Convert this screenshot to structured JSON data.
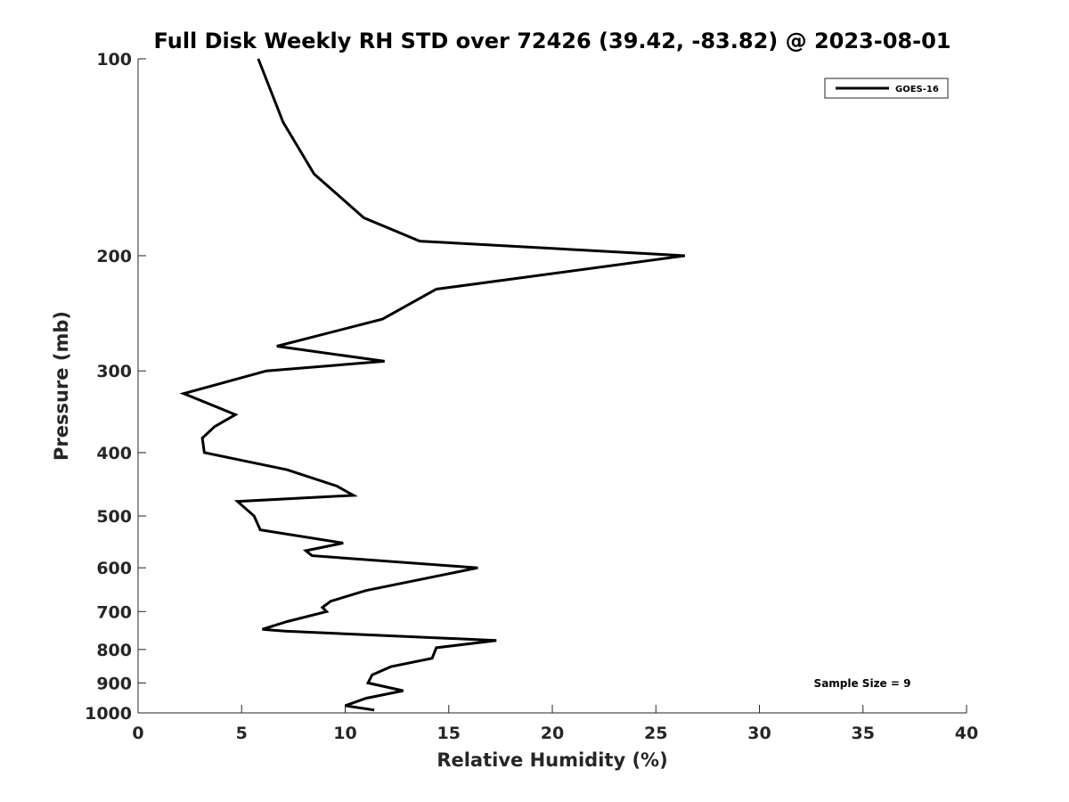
{
  "chart_data": {
    "type": "line",
    "title": "Full Disk Weekly RH STD over 72426 (39.42, -83.82) @ 2023-08-01",
    "xlabel": "Relative Humidity (%)",
    "ylabel": "Pressure (mb)",
    "xlim": [
      0,
      40
    ],
    "ylim": [
      100,
      1000
    ],
    "y_scale": "log",
    "y_reversed": true,
    "x_ticks": [
      "0",
      "5",
      "10",
      "15",
      "20",
      "25",
      "30",
      "35",
      "40"
    ],
    "y_ticks": [
      "100",
      "200",
      "300",
      "400",
      "500",
      "600",
      "700",
      "800",
      "900",
      "1000"
    ],
    "grid": false,
    "legend_position": "top-right",
    "annotation": "Sample Size = 9",
    "series": [
      {
        "name": "GOES-16",
        "color": "#000000",
        "points": [
          [
            5.8,
            100
          ],
          [
            7.0,
            125
          ],
          [
            8.5,
            150
          ],
          [
            10.9,
            175
          ],
          [
            13.6,
            190
          ],
          [
            26.4,
            200
          ],
          [
            14.4,
            225
          ],
          [
            11.8,
            250
          ],
          [
            6.7,
            275
          ],
          [
            11.9,
            290
          ],
          [
            6.2,
            300
          ],
          [
            2.2,
            325
          ],
          [
            4.7,
            350
          ],
          [
            3.7,
            365
          ],
          [
            3.1,
            380
          ],
          [
            3.2,
            400
          ],
          [
            7.2,
            425
          ],
          [
            9.6,
            450
          ],
          [
            10.4,
            465
          ],
          [
            4.8,
            475
          ],
          [
            5.6,
            500
          ],
          [
            5.9,
            525
          ],
          [
            9.9,
            550
          ],
          [
            8.1,
            565
          ],
          [
            8.4,
            575
          ],
          [
            16.4,
            600
          ],
          [
            11.0,
            650
          ],
          [
            9.3,
            675
          ],
          [
            8.9,
            690
          ],
          [
            9.1,
            700
          ],
          [
            7.2,
            725
          ],
          [
            6.0,
            745
          ],
          [
            7.1,
            750
          ],
          [
            17.3,
            775
          ],
          [
            14.4,
            795
          ],
          [
            14.2,
            825
          ],
          [
            12.2,
            850
          ],
          [
            11.3,
            875
          ],
          [
            11.1,
            900
          ],
          [
            12.8,
            925
          ],
          [
            11.0,
            950
          ],
          [
            10.0,
            975
          ],
          [
            11.4,
            990
          ]
        ]
      }
    ]
  }
}
